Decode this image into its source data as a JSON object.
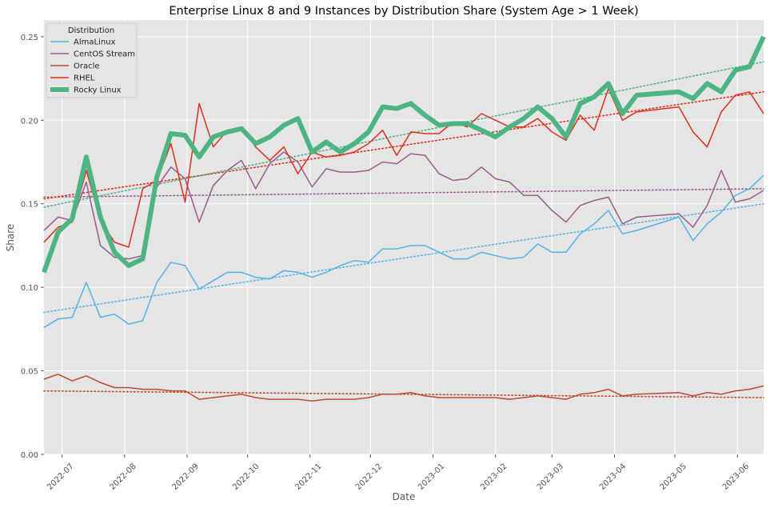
{
  "chart_data": {
    "type": "line",
    "title": "Enterprise Linux 8 and 9 Instances by Distribution Share (System Age > 1 Week)",
    "xlabel": "Date",
    "ylabel": "Share",
    "x_tick_labels": [
      "2022-07",
      "2022-08",
      "2022-09",
      "2022-10",
      "2022-11",
      "2022-12",
      "2023-01",
      "2023-02",
      "2023-03",
      "2023-04",
      "2023-05",
      "2023-06"
    ],
    "y_tick_labels": [
      "0.00",
      "0.05",
      "0.10",
      "0.15",
      "0.20",
      "0.25"
    ],
    "ylim": [
      0,
      0.26
    ],
    "grid": true,
    "legend": {
      "title": "Distribution",
      "placement": "top-left"
    },
    "x": [
      "2022-06-22",
      "2022-06-29",
      "2022-07-06",
      "2022-07-13",
      "2022-07-20",
      "2022-07-27",
      "2022-08-03",
      "2022-08-10",
      "2022-08-17",
      "2022-08-24",
      "2022-08-31",
      "2022-09-07",
      "2022-09-14",
      "2022-09-21",
      "2022-09-28",
      "2022-10-05",
      "2022-10-12",
      "2022-10-19",
      "2022-10-26",
      "2022-11-02",
      "2022-11-09",
      "2022-11-16",
      "2022-11-23",
      "2022-11-30",
      "2022-12-07",
      "2022-12-14",
      "2022-12-21",
      "2022-12-28",
      "2023-01-04",
      "2023-01-11",
      "2023-01-18",
      "2023-01-25",
      "2023-02-01",
      "2023-02-08",
      "2023-02-15",
      "2023-02-22",
      "2023-03-01",
      "2023-03-08",
      "2023-03-15",
      "2023-03-22",
      "2023-03-29",
      "2023-04-05",
      "2023-04-12",
      "2023-05-03",
      "2023-05-10",
      "2023-05-17",
      "2023-05-24",
      "2023-05-31",
      "2023-06-07",
      "2023-06-14"
    ],
    "series": [
      {
        "name": "AlmaLinux",
        "color": "#56b4e9",
        "values": [
          0.076,
          0.081,
          0.082,
          0.103,
          0.082,
          0.084,
          0.078,
          0.08,
          0.103,
          0.115,
          0.113,
          0.099,
          0.104,
          0.109,
          0.109,
          0.106,
          0.105,
          0.11,
          0.109,
          0.106,
          0.109,
          0.113,
          0.116,
          0.115,
          0.123,
          0.123,
          0.125,
          0.125,
          0.121,
          0.117,
          0.117,
          0.121,
          0.119,
          0.117,
          0.118,
          0.126,
          0.121,
          0.121,
          0.132,
          0.138,
          0.146,
          0.132,
          0.134,
          0.142,
          0.128,
          0.138,
          0.145,
          0.155,
          0.159,
          0.167
        ],
        "trend": [
          0.085,
          0.15
        ]
      },
      {
        "name": "CentOS Stream",
        "color": "#9b5c8f",
        "values": [
          0.134,
          0.142,
          0.14,
          0.163,
          0.125,
          0.118,
          0.117,
          0.119,
          0.16,
          0.172,
          0.165,
          0.139,
          0.161,
          0.17,
          0.176,
          0.159,
          0.174,
          0.181,
          0.175,
          0.16,
          0.171,
          0.169,
          0.169,
          0.17,
          0.175,
          0.174,
          0.18,
          0.179,
          0.168,
          0.164,
          0.165,
          0.172,
          0.165,
          0.163,
          0.155,
          0.155,
          0.146,
          0.139,
          0.149,
          0.152,
          0.154,
          0.138,
          0.142,
          0.144,
          0.136,
          0.149,
          0.17,
          0.151,
          0.153,
          0.158
        ],
        "trend": [
          0.154,
          0.159
        ]
      },
      {
        "name": "Oracle",
        "color": "#bc4b31",
        "values": [
          0.045,
          0.048,
          0.044,
          0.047,
          0.043,
          0.04,
          0.04,
          0.039,
          0.039,
          0.038,
          0.038,
          0.033,
          0.034,
          0.035,
          0.036,
          0.034,
          0.033,
          0.033,
          0.033,
          0.032,
          0.033,
          0.033,
          0.033,
          0.034,
          0.036,
          0.036,
          0.037,
          0.035,
          0.034,
          0.034,
          0.034,
          0.034,
          0.034,
          0.033,
          0.034,
          0.035,
          0.034,
          0.033,
          0.036,
          0.037,
          0.039,
          0.035,
          0.036,
          0.037,
          0.035,
          0.037,
          0.036,
          0.038,
          0.039,
          0.041
        ],
        "trend": [
          0.038,
          0.034
        ]
      },
      {
        "name": "RHEL",
        "color": "#e0301e",
        "values": [
          0.127,
          0.136,
          0.139,
          0.17,
          0.14,
          0.127,
          0.124,
          0.159,
          0.164,
          0.186,
          0.151,
          0.21,
          0.184,
          0.194,
          0.196,
          0.184,
          0.176,
          0.184,
          0.168,
          0.181,
          0.178,
          0.179,
          0.181,
          0.186,
          0.194,
          0.179,
          0.193,
          0.192,
          0.192,
          0.199,
          0.196,
          0.204,
          0.2,
          0.196,
          0.196,
          0.201,
          0.193,
          0.188,
          0.203,
          0.194,
          0.219,
          0.2,
          0.205,
          0.208,
          0.193,
          0.184,
          0.205,
          0.215,
          0.217,
          0.204
        ],
        "trend": [
          0.153,
          0.217
        ]
      },
      {
        "name": "Rocky Linux",
        "color": "#4cb583",
        "values": [
          0.109,
          0.133,
          0.141,
          0.178,
          0.142,
          0.121,
          0.113,
          0.117,
          0.166,
          0.192,
          0.191,
          0.178,
          0.19,
          0.193,
          0.195,
          0.186,
          0.19,
          0.197,
          0.201,
          0.181,
          0.187,
          0.181,
          0.186,
          0.193,
          0.208,
          0.207,
          0.21,
          0.203,
          0.197,
          0.198,
          0.198,
          0.194,
          0.19,
          0.196,
          0.201,
          0.208,
          0.201,
          0.19,
          0.21,
          0.214,
          0.222,
          0.204,
          0.215,
          0.217,
          0.213,
          0.222,
          0.217,
          0.23,
          0.232,
          0.25
        ],
        "trend": [
          0.148,
          0.235
        ]
      }
    ]
  }
}
